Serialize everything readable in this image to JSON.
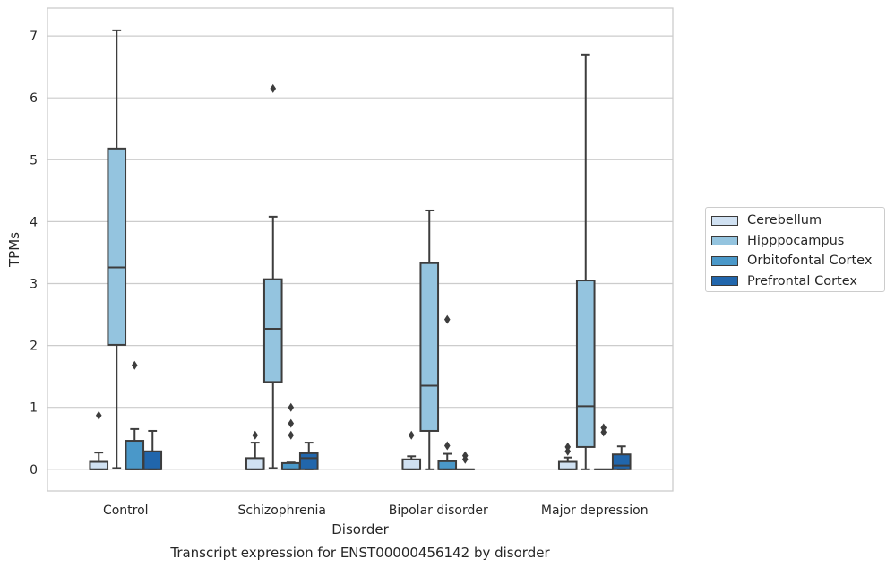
{
  "chart_data": {
    "type": "boxplot",
    "title": "Transcript expression for ENST00000456142 by disorder",
    "xlabel": "Disorder",
    "ylabel": "TPMs",
    "ylim": [
      -0.35,
      7.45
    ],
    "yticks": [
      0,
      1,
      2,
      3,
      4,
      5,
      6,
      7
    ],
    "grid": "horizontal",
    "legend_position": "right",
    "categories": [
      "Control",
      "Schizophrenia",
      "Bipolar disorder",
      "Major depression"
    ],
    "series": [
      {
        "name": "Cerebellum",
        "color": "#d0e1f2",
        "boxes": [
          {
            "whislo": 0.0,
            "q1": 0.0,
            "med": 0.0,
            "q3": 0.12,
            "whishi": 0.27,
            "fliers": [
              0.87
            ]
          },
          {
            "whislo": 0.0,
            "q1": 0.0,
            "med": 0.0,
            "q3": 0.18,
            "whishi": 0.43,
            "fliers": [
              0.55
            ]
          },
          {
            "whislo": 0.0,
            "q1": 0.0,
            "med": 0.0,
            "q3": 0.16,
            "whishi": 0.21,
            "fliers": [
              0.55
            ]
          },
          {
            "whislo": 0.0,
            "q1": 0.0,
            "med": 0.0,
            "q3": 0.12,
            "whishi": 0.19,
            "fliers": [
              0.29,
              0.36
            ]
          }
        ]
      },
      {
        "name": "Hipppocampus",
        "color": "#94c4df",
        "boxes": [
          {
            "whislo": 0.02,
            "q1": 2.01,
            "med": 3.26,
            "q3": 5.18,
            "whishi": 7.09,
            "fliers": []
          },
          {
            "whislo": 0.02,
            "q1": 1.41,
            "med": 2.27,
            "q3": 3.07,
            "whishi": 4.08,
            "fliers": [
              6.15
            ]
          },
          {
            "whislo": 0.0,
            "q1": 0.62,
            "med": 1.35,
            "q3": 3.33,
            "whishi": 4.18,
            "fliers": []
          },
          {
            "whislo": 0.0,
            "q1": 0.36,
            "med": 1.02,
            "q3": 3.05,
            "whishi": 6.7,
            "fliers": []
          }
        ]
      },
      {
        "name": "Orbitofontal Cortex",
        "color": "#4a98c9",
        "boxes": [
          {
            "whislo": 0.0,
            "q1": 0.0,
            "med": 0.0,
            "q3": 0.46,
            "whishi": 0.65,
            "fliers": [
              1.68
            ]
          },
          {
            "whislo": 0.0,
            "q1": 0.0,
            "med": 0.0,
            "q3": 0.1,
            "whishi": 0.11,
            "fliers": [
              0.55,
              0.74,
              1.0
            ]
          },
          {
            "whislo": 0.0,
            "q1": 0.0,
            "med": 0.0,
            "q3": 0.13,
            "whishi": 0.25,
            "fliers": [
              0.38,
              2.42
            ]
          },
          {
            "whislo": 0.0,
            "q1": 0.0,
            "med": 0.0,
            "q3": 0.0,
            "whishi": 0.0,
            "fliers": [
              0.6,
              0.67
            ]
          }
        ]
      },
      {
        "name": "Prefrontal Cortex",
        "color": "#2166ac",
        "boxes": [
          {
            "whislo": 0.0,
            "q1": 0.0,
            "med": 0.0,
            "q3": 0.29,
            "whishi": 0.62,
            "fliers": []
          },
          {
            "whislo": 0.0,
            "q1": 0.0,
            "med": 0.18,
            "q3": 0.26,
            "whishi": 0.43,
            "fliers": []
          },
          {
            "whislo": 0.0,
            "q1": 0.0,
            "med": 0.0,
            "q3": 0.0,
            "whishi": 0.0,
            "fliers": [
              0.16,
              0.22
            ]
          },
          {
            "whislo": 0.0,
            "q1": 0.0,
            "med": 0.06,
            "q3": 0.24,
            "whishi": 0.37,
            "fliers": []
          }
        ]
      }
    ]
  }
}
